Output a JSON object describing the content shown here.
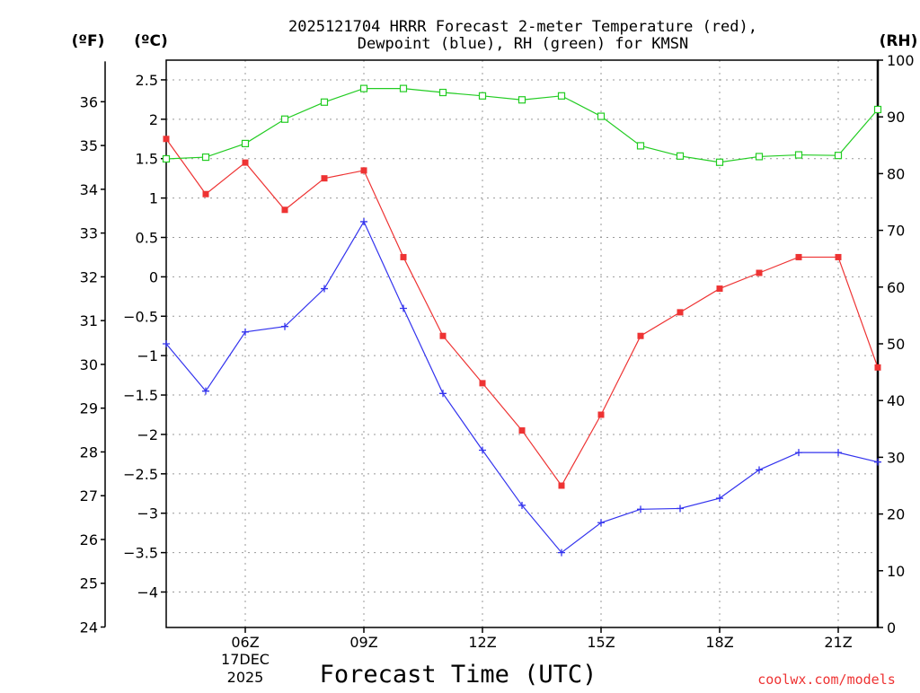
{
  "chart_data": {
    "type": "line",
    "title_line1": "2025121704 HRRR Forecast 2-meter Temperature (red),",
    "title_line2": "Dewpoint (blue), RH (green) for KMSN",
    "xlabel": "Forecast Time (UTC)",
    "date_label_day": "17DEC",
    "date_label_year": "2025",
    "credit": "coolwx.com/models",
    "x_hours": [
      4,
      5,
      6,
      7,
      8,
      9,
      10,
      11,
      12,
      13,
      14,
      15,
      16,
      17,
      18,
      19,
      20,
      21,
      22
    ],
    "xlim": [
      4,
      22
    ],
    "x_ticks": [
      {
        "hour": 6,
        "label": "06Z"
      },
      {
        "hour": 9,
        "label": "09Z"
      },
      {
        "hour": 12,
        "label": "12Z"
      },
      {
        "hour": 15,
        "label": "15Z"
      },
      {
        "hour": 18,
        "label": "18Z"
      },
      {
        "hour": 21,
        "label": "21Z"
      }
    ],
    "y_celsius": {
      "unit_label": "(ºC)",
      "range": [
        -4.45,
        2.75
      ],
      "ticks": [
        2.5,
        2,
        1.5,
        1,
        0.5,
        0,
        -0.5,
        -1,
        -1.5,
        -2,
        -2.5,
        -3,
        -3.5,
        -4
      ],
      "tick_labels": [
        "2.5",
        "2",
        "1.5",
        "1",
        "0.5",
        "0",
        "−0.5",
        "−1",
        "−1.5",
        "−2",
        "−2.5",
        "−3",
        "−3.5",
        "−4"
      ]
    },
    "y_fahrenheit": {
      "unit_label": "(ºF)",
      "ticks": [
        36,
        35,
        34,
        33,
        32,
        31,
        30,
        29,
        28,
        27,
        26,
        25,
        24
      ],
      "tick_labels": [
        "36",
        "35",
        "34",
        "33",
        "32",
        "31",
        "30",
        "29",
        "28",
        "27",
        "26",
        "25",
        "24"
      ]
    },
    "y_rh": {
      "unit_label": "(RH)",
      "range": [
        0,
        100
      ],
      "ticks": [
        100,
        90,
        80,
        70,
        60,
        50,
        40,
        30,
        20,
        10,
        0
      ],
      "tick_labels": [
        "100",
        "90",
        "80",
        "70",
        "60",
        "50",
        "40",
        "30",
        "20",
        "10",
        "0"
      ]
    },
    "series": [
      {
        "name": "2-meter Temperature",
        "color": "#ee3333",
        "marker": "filled-square",
        "axis": "celsius",
        "values": [
          1.75,
          1.05,
          1.45,
          0.85,
          1.25,
          1.35,
          0.25,
          -0.75,
          -1.35,
          -1.95,
          -2.65,
          -1.75,
          -0.75,
          -0.45,
          -0.15,
          0.05,
          0.25,
          0.25,
          -1.15
        ]
      },
      {
        "name": "Dewpoint",
        "color": "#3333ee",
        "marker": "plus",
        "axis": "celsius",
        "values": [
          -0.85,
          -1.45,
          -0.7,
          -0.63,
          -0.15,
          0.7,
          -0.4,
          -1.48,
          -2.2,
          -2.9,
          -3.5,
          -3.12,
          -2.95,
          -2.94,
          -2.81,
          -2.45,
          -2.23,
          -2.23,
          -2.35
        ]
      },
      {
        "name": "RH",
        "color": "#22cc22",
        "marker": "open-square",
        "axis": "rh",
        "values": [
          82.6,
          82.9,
          85.3,
          89.6,
          92.6,
          95.0,
          95.0,
          94.3,
          93.7,
          93.0,
          93.7,
          90.1,
          84.9,
          83.1,
          82.0,
          83.0,
          83.3,
          83.2,
          91.3
        ]
      }
    ]
  }
}
